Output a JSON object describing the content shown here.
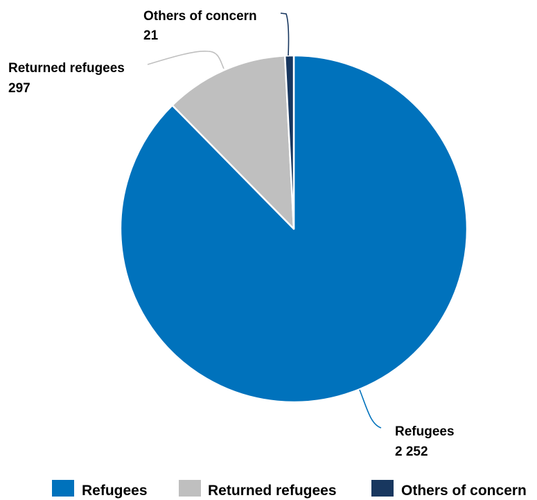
{
  "chart_data": {
    "type": "pie",
    "title": "",
    "series": [
      {
        "name": "Refugees",
        "value": 2252,
        "label": "2 252",
        "color": "#0072bc"
      },
      {
        "name": "Returned refugees",
        "value": 297,
        "label": "297",
        "color": "#bfbfbf"
      },
      {
        "name": "Others of concern",
        "value": 21,
        "label": "21",
        "color": "#18375f"
      }
    ],
    "start_angle_deg": 0,
    "direction": "clockwise",
    "legend_position": "bottom",
    "slice_border_color": "#ffffff"
  }
}
